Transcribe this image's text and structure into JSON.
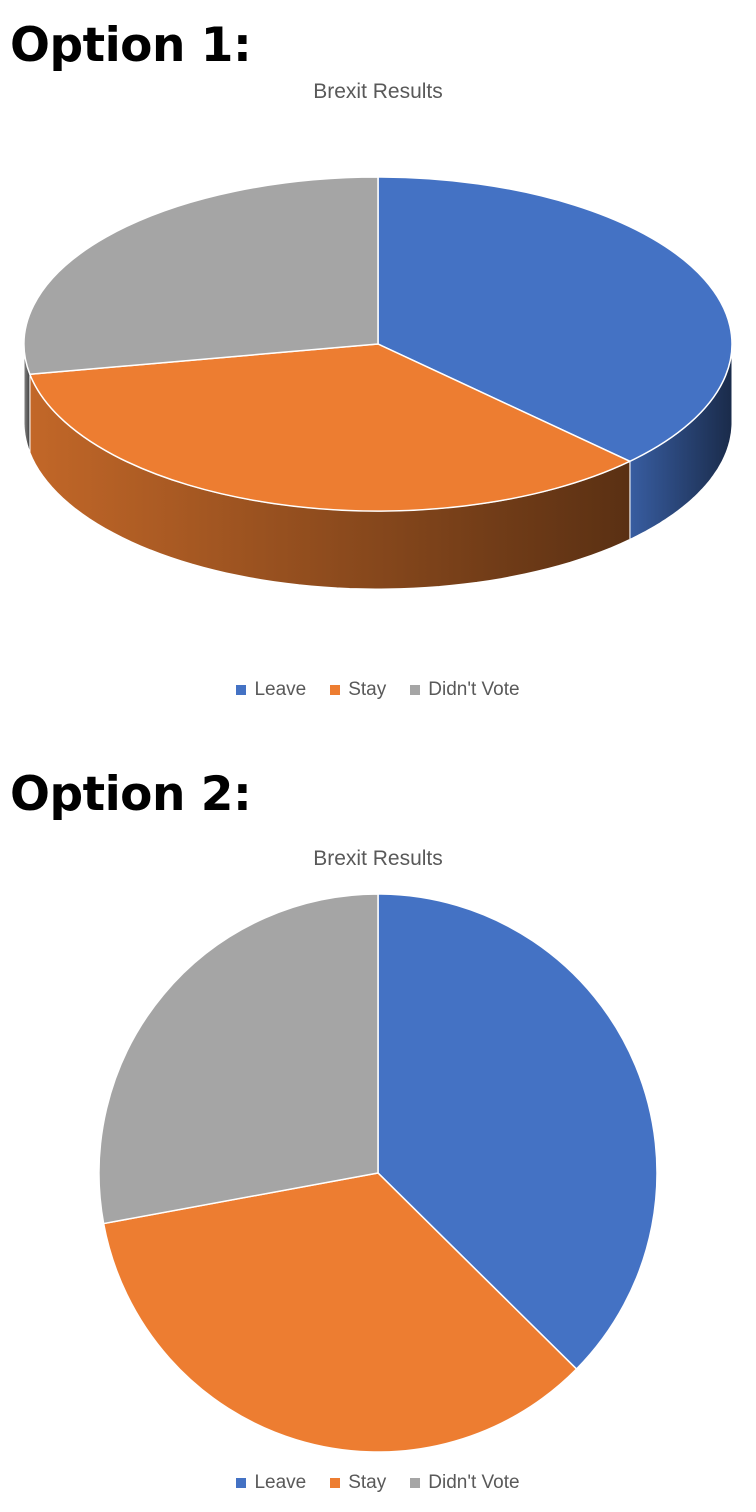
{
  "options": [
    {
      "heading": "Option 1:"
    },
    {
      "heading": "Option 2:"
    }
  ],
  "chart_data": [
    {
      "type": "pie",
      "variant": "3d",
      "title": "Brexit Results",
      "categories": [
        "Leave",
        "Stay",
        "Didn't Vote"
      ],
      "values": [
        37.4,
        34.7,
        27.9
      ],
      "colors": [
        "#4472c4",
        "#ed7d31",
        "#a5a5a5"
      ],
      "legend_position": "bottom"
    },
    {
      "type": "pie",
      "variant": "2d",
      "title": "Brexit Results",
      "categories": [
        "Leave",
        "Stay",
        "Didn't Vote"
      ],
      "values": [
        37.4,
        34.7,
        27.9
      ],
      "colors": [
        "#4472c4",
        "#ed7d31",
        "#a5a5a5"
      ],
      "legend_position": "bottom"
    }
  ]
}
